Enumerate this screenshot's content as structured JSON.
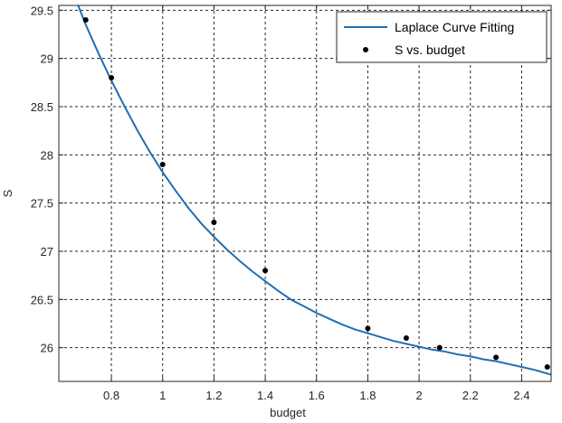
{
  "chart_data": {
    "type": "line",
    "title": "",
    "xlabel": "budget",
    "ylabel": "S",
    "xlim": [
      0.595,
      2.515
    ],
    "ylim": [
      25.65,
      29.55
    ],
    "xticks": [
      0.8,
      1.0,
      1.2,
      1.4,
      1.6,
      1.8,
      2.0,
      2.2,
      2.4
    ],
    "xtick_labels": [
      "0.8",
      "1",
      "1.2",
      "1.4",
      "1.6",
      "1.8",
      "2",
      "2.2",
      "2.4"
    ],
    "yticks": [
      26.0,
      26.5,
      27.0,
      27.5,
      28.0,
      28.5,
      29.0,
      29.5
    ],
    "ytick_labels": [
      "26",
      "26.5",
      "27",
      "27.5",
      "28",
      "28.5",
      "29",
      "29.5"
    ],
    "grid": true,
    "legend_position": "top-right",
    "series": [
      {
        "name": "Laplace Curve Fitting",
        "kind": "line",
        "color": "#1f6fb4",
        "x": [
          0.66,
          0.7,
          0.75,
          0.8,
          0.85,
          0.9,
          0.95,
          1.0,
          1.05,
          1.1,
          1.15,
          1.2,
          1.25,
          1.3,
          1.35,
          1.4,
          1.45,
          1.5,
          1.55,
          1.6,
          1.65,
          1.7,
          1.75,
          1.8,
          1.85,
          1.9,
          1.95,
          2.0,
          2.05,
          2.1,
          2.15,
          2.2,
          2.25,
          2.3,
          2.35,
          2.4,
          2.45,
          2.515
        ],
        "y": [
          29.62,
          29.35,
          29.05,
          28.77,
          28.51,
          28.26,
          28.03,
          27.82,
          27.63,
          27.45,
          27.29,
          27.15,
          27.02,
          26.9,
          26.79,
          26.69,
          26.59,
          26.5,
          26.43,
          26.36,
          26.3,
          26.24,
          26.19,
          26.15,
          26.11,
          26.07,
          26.04,
          26.01,
          25.98,
          25.96,
          25.93,
          25.91,
          25.88,
          25.86,
          25.83,
          25.8,
          25.77,
          25.72
        ]
      },
      {
        "name": "S vs. budget",
        "kind": "scatter",
        "color": "#000000",
        "x": [
          0.7,
          0.8,
          1.0,
          1.2,
          1.4,
          1.8,
          1.95,
          2.08,
          2.3,
          2.5
        ],
        "y": [
          29.4,
          28.8,
          27.9,
          27.3,
          26.8,
          26.2,
          26.1,
          26.0,
          25.9,
          25.8
        ]
      }
    ]
  }
}
